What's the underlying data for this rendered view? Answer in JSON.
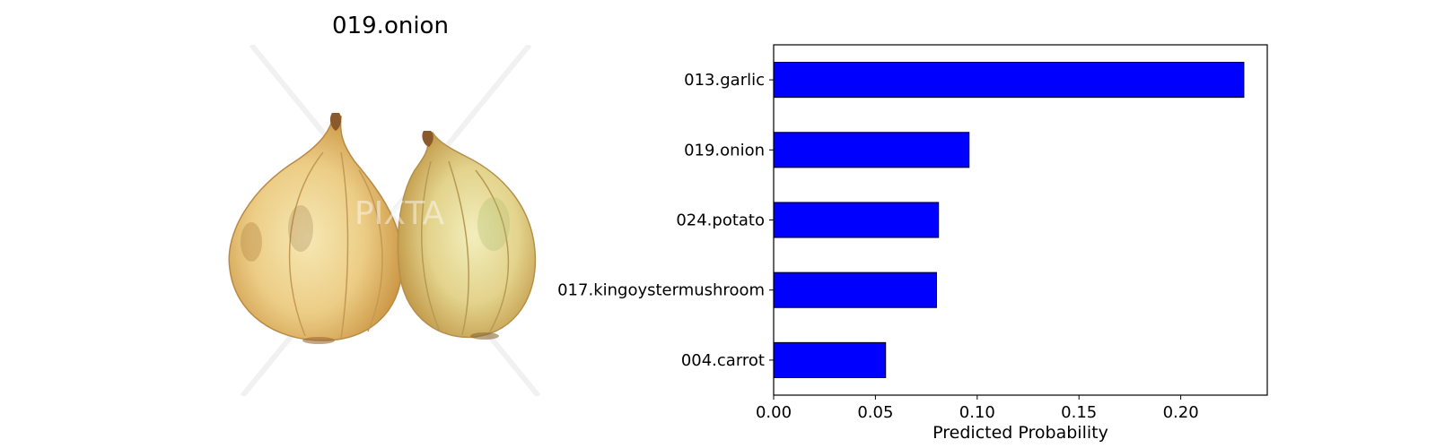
{
  "image_panel": {
    "title": "019.onion",
    "watermark": "PIXTA"
  },
  "chart_data": {
    "type": "bar",
    "orientation": "horizontal",
    "categories": [
      "013.garlic",
      "019.onion",
      "024.potato",
      "017.kingoystermushroom",
      "004.carrot"
    ],
    "values": [
      0.231,
      0.096,
      0.081,
      0.08,
      0.055
    ],
    "xlabel": "Predicted Probability",
    "ylabel": "",
    "xlim": [
      0,
      0.2425
    ],
    "xticks": [
      0.0,
      0.05,
      0.1,
      0.15,
      0.2
    ],
    "xtick_labels": [
      "0.00",
      "0.05",
      "0.10",
      "0.15",
      "0.20"
    ],
    "grid": false,
    "bar_color": "#0000ff",
    "edge_color": "#000000"
  }
}
